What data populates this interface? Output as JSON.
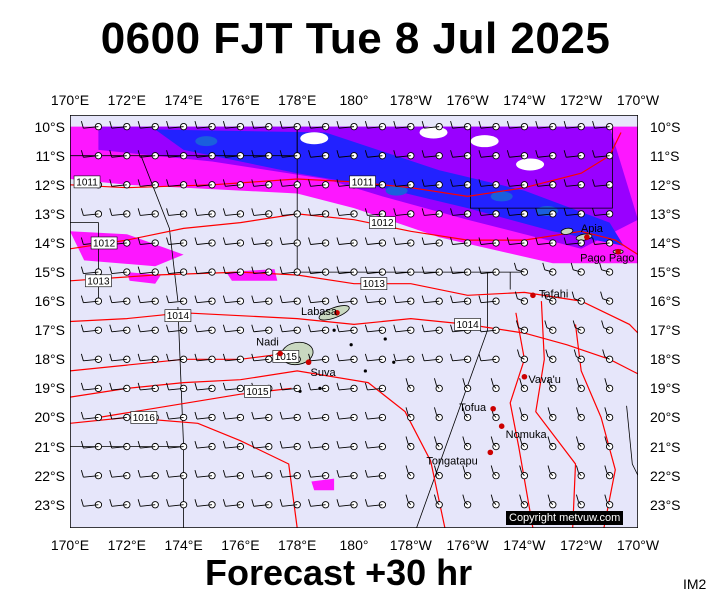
{
  "title": "0600 FJT Tue 8 Jul 2025",
  "subtitle": "Forecast +30 hr",
  "image_code": "IM2",
  "copyright": "Copyright metvuw.com",
  "lon_labels": [
    "170°E",
    "172°E",
    "174°E",
    "176°E",
    "178°E",
    "180°",
    "178°W",
    "176°W",
    "174°W",
    "172°W",
    "170°W"
  ],
  "lat_labels": [
    "10°S",
    "11°S",
    "12°S",
    "13°S",
    "14°S",
    "15°S",
    "16°S",
    "17°S",
    "18°S",
    "19°S",
    "20°S",
    "21°S",
    "22°S",
    "23°S"
  ],
  "places": [
    {
      "name": "Labasa",
      "lon": 179.4,
      "lat": -16.4
    },
    {
      "name": "Nadi",
      "lon": 177.4,
      "lat": -17.8
    },
    {
      "name": "Suva",
      "lon": 178.4,
      "lat": -18.1
    },
    {
      "name": "Apia",
      "lon": -171.8,
      "lat": -13.8
    },
    {
      "name": "Pago Pago",
      "lon": -170.7,
      "lat": -14.3
    },
    {
      "name": "Tafahi",
      "lon": -173.7,
      "lat": -15.8
    },
    {
      "name": "Vava'u",
      "lon": -174.0,
      "lat": -18.6
    },
    {
      "name": "Tofua",
      "lon": -175.1,
      "lat": -19.7
    },
    {
      "name": "Nomuka",
      "lon": -174.8,
      "lat": -20.3
    },
    {
      "name": "Tongatapu",
      "lon": -175.2,
      "lat": -21.2
    }
  ],
  "isobar_labels": [
    {
      "value": "1011",
      "lon": 170.6,
      "lat": -11.9
    },
    {
      "value": "1011",
      "lon": -179.7,
      "lat": -11.9
    },
    {
      "value": "1012",
      "lon": 171.2,
      "lat": -14.0
    },
    {
      "value": "1012",
      "lon": -179.0,
      "lat": -13.3
    },
    {
      "value": "1013",
      "lon": 171.0,
      "lat": -15.3
    },
    {
      "value": "1013",
      "lon": -179.3,
      "lat": -15.4
    },
    {
      "value": "1014",
      "lon": 173.8,
      "lat": -16.5
    },
    {
      "value": "1014",
      "lon": -176.0,
      "lat": -16.8
    },
    {
      "value": "1015",
      "lon": 177.6,
      "lat": -17.9
    },
    {
      "value": "1015",
      "lon": 176.6,
      "lat": -19.1
    },
    {
      "value": "1016",
      "lon": 172.6,
      "lat": -20.0
    }
  ],
  "colors": {
    "background": "#e6e6fa",
    "rain_light": "#ff00ff",
    "rain_medium": "#9900ff",
    "rain_heavy": "#2222ff",
    "rain_intense": "#1a5fdd",
    "isobar": "#ff0000",
    "border": "#000000",
    "land": "#3d8a3d"
  },
  "rain_bands": [
    {
      "level": "light",
      "polygon": [
        [
          170,
          -10
        ],
        [
          190,
          -10
        ],
        [
          190,
          -14.7
        ],
        [
          187,
          -14.7
        ],
        [
          183,
          -13.8
        ],
        [
          180,
          -12.8
        ],
        [
          178,
          -12.3
        ],
        [
          172,
          -12.0
        ],
        [
          170,
          -11.8
        ]
      ]
    },
    {
      "level": "medium",
      "polygon": [
        [
          171,
          -10
        ],
        [
          189,
          -10
        ],
        [
          190,
          -13.2
        ],
        [
          188,
          -14.2
        ],
        [
          184,
          -13.2
        ],
        [
          181,
          -12.4
        ],
        [
          179,
          -11.8
        ],
        [
          175,
          -11.2
        ],
        [
          171,
          -10.8
        ]
      ]
    },
    {
      "level": "heavy",
      "polygon": [
        [
          173,
          -10.1
        ],
        [
          179,
          -10.2
        ],
        [
          183,
          -11.5
        ],
        [
          186,
          -12.2
        ],
        [
          189,
          -13.3
        ],
        [
          189.5,
          -14.1
        ],
        [
          187,
          -13.6
        ],
        [
          184,
          -12.8
        ],
        [
          181,
          -12.1
        ],
        [
          178,
          -11.6
        ],
        [
          174,
          -10.8
        ]
      ]
    },
    {
      "level": "light",
      "polygon": [
        [
          170,
          -13.6
        ],
        [
          172,
          -13.7
        ],
        [
          174,
          -14.4
        ],
        [
          173,
          -14.8
        ],
        [
          170.5,
          -14.6
        ]
      ]
    },
    {
      "level": "light",
      "polygon": [
        [
          175.5,
          -15.0
        ],
        [
          177.2,
          -14.9
        ],
        [
          177.3,
          -15.3
        ],
        [
          175.7,
          -15.3
        ]
      ]
    },
    {
      "level": "light",
      "polygon": [
        [
          172.0,
          -15.0
        ],
        [
          173.2,
          -15.1
        ],
        [
          173.0,
          -15.4
        ],
        [
          172.1,
          -15.3
        ]
      ]
    },
    {
      "level": "light",
      "polygon": [
        [
          178.5,
          -22.2
        ],
        [
          179.3,
          -22.1
        ],
        [
          179.3,
          -22.5
        ],
        [
          178.6,
          -22.5
        ]
      ]
    }
  ]
}
